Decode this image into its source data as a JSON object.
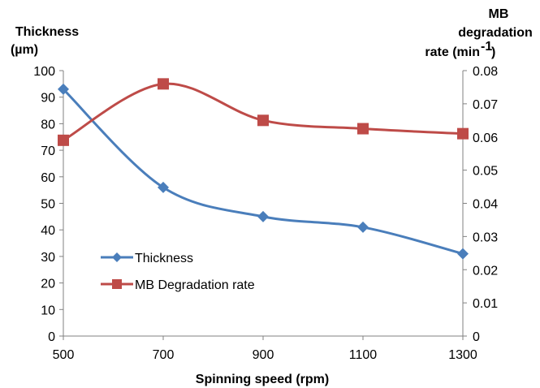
{
  "chart_data": {
    "type": "line",
    "x": [
      500,
      700,
      900,
      1100,
      1300
    ],
    "xlabel": "Spinning speed (rpm)",
    "xlim": [
      500,
      1300
    ],
    "x_ticks": [
      "500",
      "700",
      "900",
      "1100",
      "1300"
    ],
    "y_left": {
      "label_lines": [
        "Thickness",
        "(µm)"
      ],
      "lim": [
        0,
        100
      ],
      "ticks": [
        "0",
        "10",
        "20",
        "30",
        "40",
        "50",
        "60",
        "70",
        "80",
        "90",
        "100"
      ]
    },
    "y_right": {
      "label_lines": [
        "MB",
        "degradation",
        "rate (min"
      ],
      "label_superscript": "-1",
      "label_close": ")",
      "lim": [
        0,
        0.08
      ],
      "ticks": [
        "0",
        "0.01",
        "0.02",
        "0.03",
        "0.04",
        "0.05",
        "0.06",
        "0.07",
        "0.08"
      ]
    },
    "series": [
      {
        "name": "Thickness",
        "axis": "left",
        "marker": "diamond",
        "color": "#4a7ebb",
        "values": [
          93,
          56,
          45,
          41,
          31
        ]
      },
      {
        "name": "MB Degradation rate",
        "axis": "right",
        "marker": "square",
        "color": "#be4b48",
        "values": [
          0.059,
          0.076,
          0.065,
          0.0625,
          0.061
        ]
      }
    ],
    "grid": false,
    "legend_position": "lower-left inside"
  }
}
